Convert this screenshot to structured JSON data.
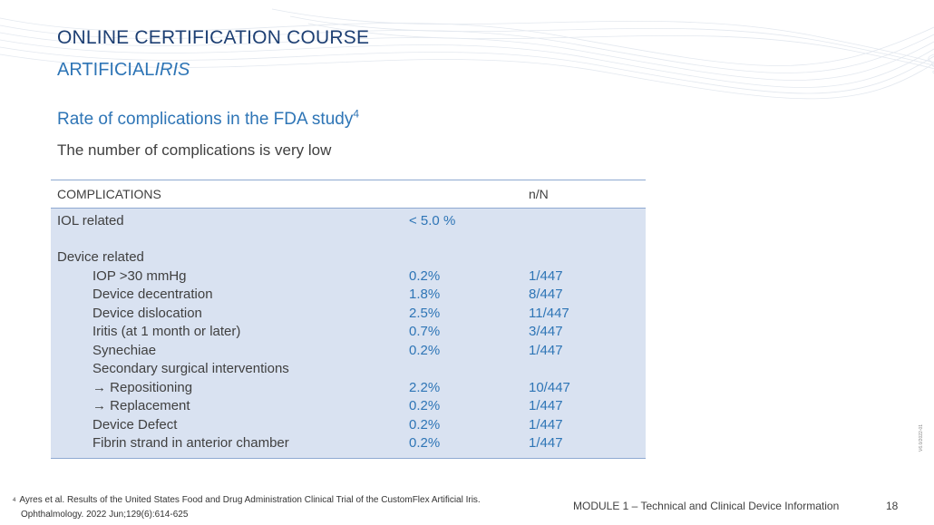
{
  "header": {
    "line1": "ONLINE CERTIFICATION COURSE",
    "line2_part1": "ARTIFICIAL",
    "line2_part2": "IRIS"
  },
  "section": {
    "title": "Rate of complications in the FDA study",
    "title_ref": "4",
    "subtitle": "The number of complications is very low"
  },
  "table": {
    "headers": [
      "COMPLICATIONS",
      "",
      "n/N"
    ],
    "rows": [
      {
        "label": "IOL related",
        "pct": "< 5.0 %",
        "n": ""
      },
      {
        "label": "",
        "pct": "",
        "n": ""
      },
      {
        "label": "Device related",
        "pct": "",
        "n": ""
      },
      {
        "label": "IOP >30 mmHg",
        "pct": "0.2%",
        "n": "1/447"
      },
      {
        "label": "Device decentration",
        "pct": "1.8%",
        "n": "8/447"
      },
      {
        "label": "Device dislocation",
        "pct": "2.5%",
        "n": "11/447"
      },
      {
        "label": "Iritis (at 1 month or later)",
        "pct": "0.7%",
        "n": "3/447"
      },
      {
        "label": "Synechiae",
        "pct": "0.2%",
        "n": "1/447"
      },
      {
        "label": "Secondary surgical interventions",
        "pct": "",
        "n": ""
      },
      {
        "label": "→ Repositioning",
        "pct": "2.2%",
        "n": "10/447"
      },
      {
        "label": "→ Replacement",
        "pct": "0.2%",
        "n": "1/447"
      },
      {
        "label": "Device Defect",
        "pct": "0.2%",
        "n": "1/447"
      },
      {
        "label": "Fibrin strand in anterior chamber",
        "pct": "0.2%",
        "n": "1/447"
      }
    ]
  },
  "footer": {
    "footnote_mark": "4",
    "footnote_line1": "Ayres et al. Results of the United States Food and Drug Administration Clinical Trial of the CustomFlex Artificial Iris.",
    "footnote_line2": "Ophthalmology. 2022 Jun;129(6):614-625",
    "module": "MODULE 1 – Technical and Clinical Device Information",
    "page": "18",
    "version_code": "V6.0/2022-01"
  },
  "colors": {
    "title_dark": "#1d3f73",
    "accent_blue": "#2e75b6",
    "table_fill": "#d9e2f1",
    "rule": "#8ea9d1"
  }
}
